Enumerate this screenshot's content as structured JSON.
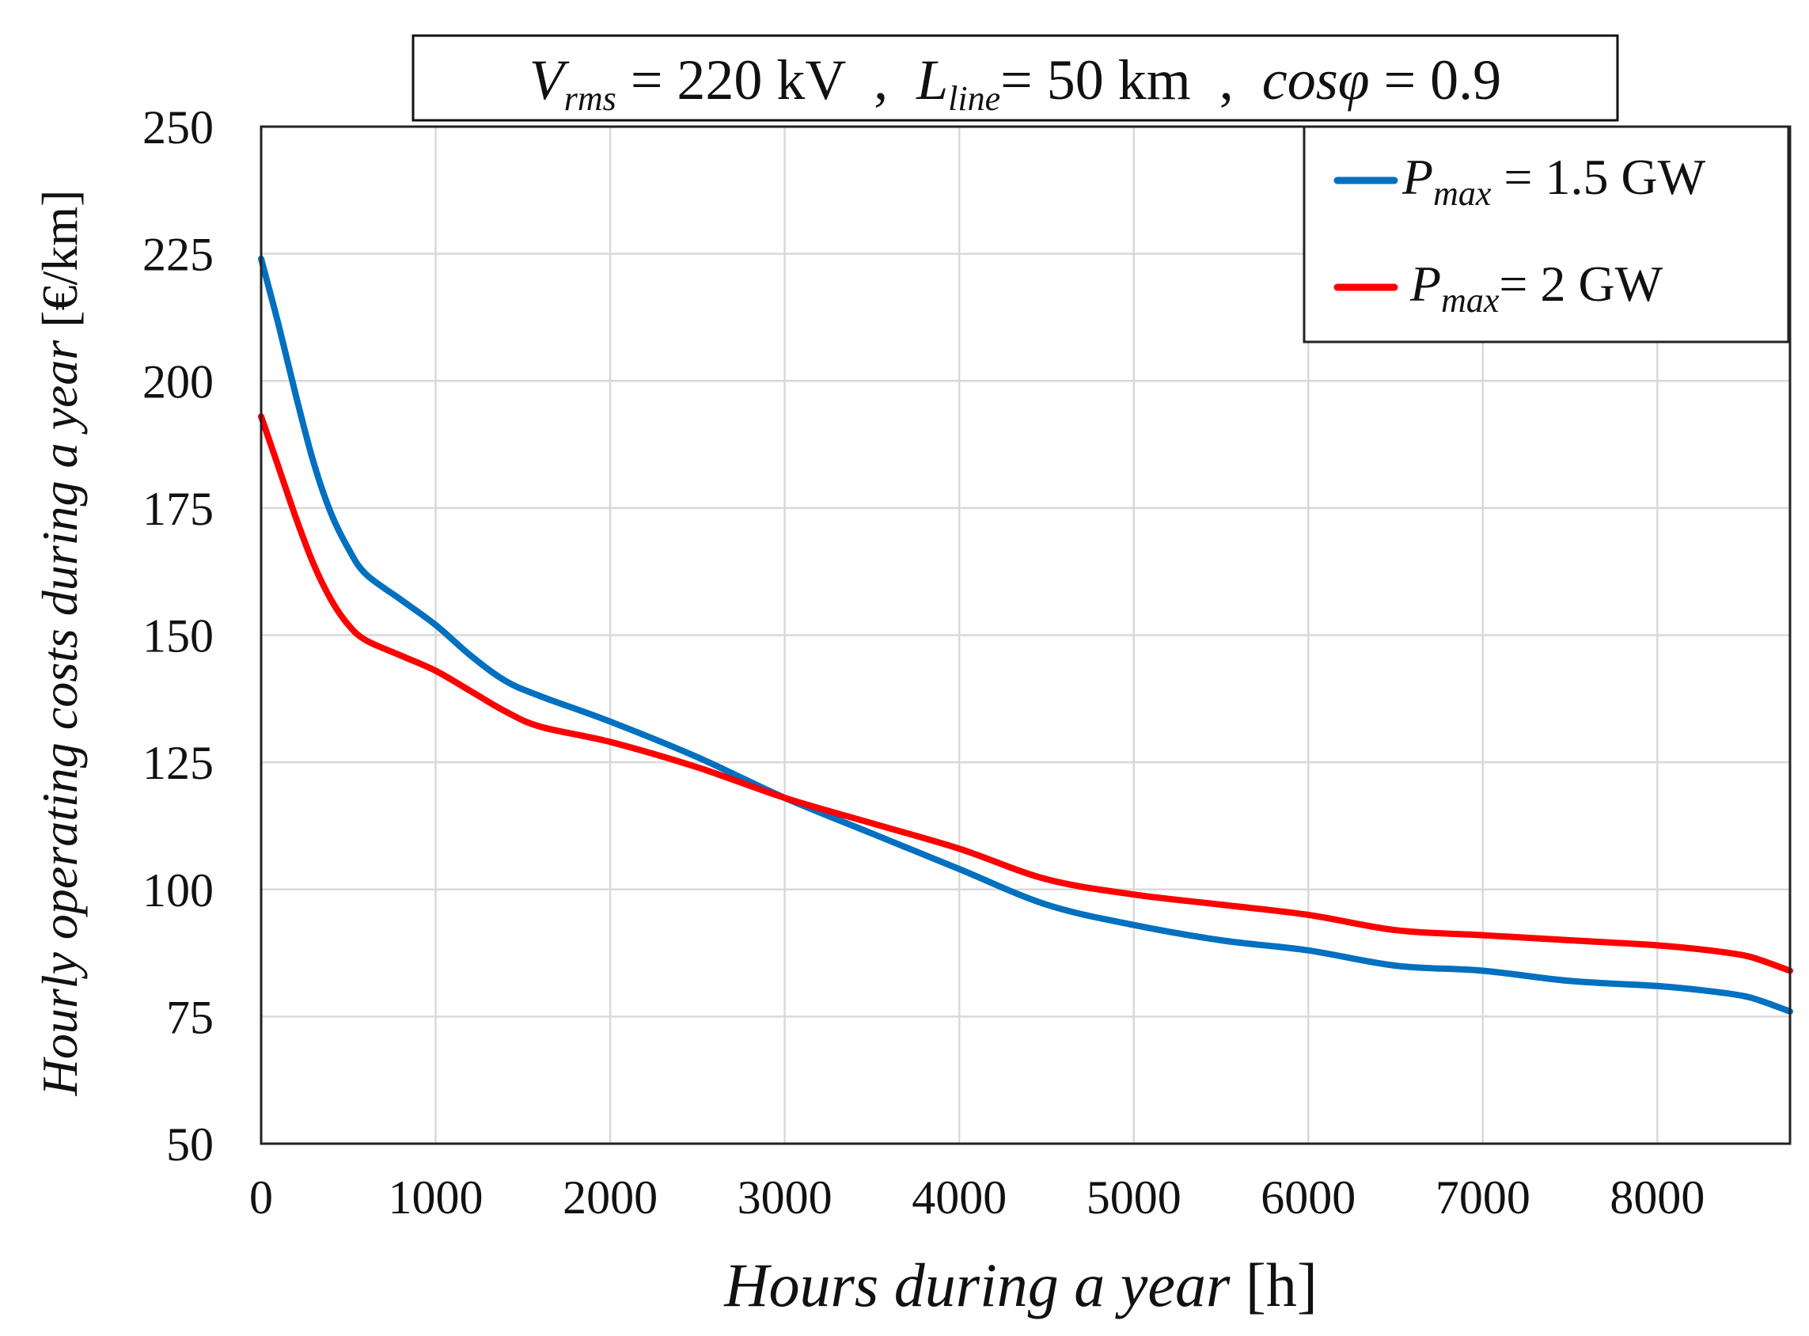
{
  "chart_data": {
    "type": "line",
    "title": {
      "v_sym": "V",
      "v_sub": "rms",
      "v_val": " = 220 kV  ,  ",
      "l_sym": "L",
      "l_sub": "line",
      "l_val": "= 50 km  ,  ",
      "c_sym": "cosφ",
      "c_val": " = 0.9"
    },
    "xlabel": {
      "italic": "Hours during a year",
      "unit": " [h]"
    },
    "ylabel": {
      "italic": "Hourly operating costs during a year",
      "unit": " [€/km]"
    },
    "xlim": [
      0,
      8760
    ],
    "ylim": [
      50,
      250
    ],
    "x_ticks": [
      0,
      1000,
      2000,
      3000,
      4000,
      5000,
      6000,
      7000,
      8000
    ],
    "y_ticks": [
      50,
      75,
      100,
      125,
      150,
      175,
      200,
      225,
      250
    ],
    "grid": true,
    "legend_position": "top-right",
    "series": [
      {
        "name": {
          "sym": "P",
          "sub": "max",
          "val": " = 1.5 GW"
        },
        "color": "#0070c0",
        "points": [
          [
            0,
            224
          ],
          [
            100,
            211
          ],
          [
            200,
            197
          ],
          [
            300,
            184
          ],
          [
            400,
            174
          ],
          [
            500,
            167
          ],
          [
            600,
            162
          ],
          [
            800,
            157
          ],
          [
            1000,
            152
          ],
          [
            1200,
            146
          ],
          [
            1400,
            141
          ],
          [
            1600,
            138
          ],
          [
            2000,
            133
          ],
          [
            2500,
            126
          ],
          [
            3000,
            118
          ],
          [
            3500,
            111
          ],
          [
            4000,
            104
          ],
          [
            4500,
            97
          ],
          [
            5000,
            93
          ],
          [
            5500,
            90
          ],
          [
            6000,
            88
          ],
          [
            6500,
            85
          ],
          [
            7000,
            84
          ],
          [
            7500,
            82
          ],
          [
            8000,
            81
          ],
          [
            8300,
            80
          ],
          [
            8500,
            79
          ],
          [
            8600,
            78
          ],
          [
            8760,
            76
          ]
        ]
      },
      {
        "name": {
          "sym": "P",
          "sub": "max",
          "val": "= 2 GW"
        },
        "color": "#ff0000",
        "points": [
          [
            0,
            193
          ],
          [
            100,
            183
          ],
          [
            200,
            173
          ],
          [
            300,
            164
          ],
          [
            400,
            157
          ],
          [
            500,
            152
          ],
          [
            600,
            149
          ],
          [
            800,
            146
          ],
          [
            1000,
            143
          ],
          [
            1200,
            139
          ],
          [
            1400,
            135
          ],
          [
            1600,
            132
          ],
          [
            2000,
            129
          ],
          [
            2500,
            124
          ],
          [
            3000,
            118
          ],
          [
            3500,
            113
          ],
          [
            4000,
            108
          ],
          [
            4500,
            102
          ],
          [
            5000,
            99
          ],
          [
            5500,
            97
          ],
          [
            6000,
            95
          ],
          [
            6500,
            92
          ],
          [
            7000,
            91
          ],
          [
            7500,
            90
          ],
          [
            8000,
            89
          ],
          [
            8300,
            88
          ],
          [
            8500,
            87
          ],
          [
            8600,
            86
          ],
          [
            8760,
            84
          ]
        ]
      }
    ]
  }
}
